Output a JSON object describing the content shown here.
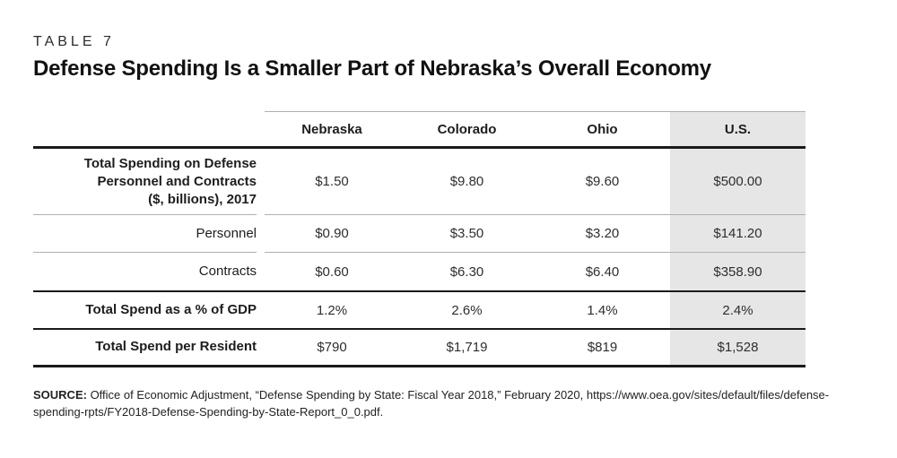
{
  "header": {
    "kicker": "TABLE 7",
    "title": "Defense Spending Is a Smaller Part of Nebraska’s Overall Economy"
  },
  "table": {
    "columns": [
      "Nebraska",
      "Colorado",
      "Ohio",
      "U.S."
    ],
    "rows": [
      {
        "label": "Total Spending on Defense Personnel and Contracts ($, billions), 2017",
        "label_lines": [
          "Total Spending on Defense",
          "Personnel and Contracts",
          "($, billions), 2017"
        ],
        "values": [
          "$1.50",
          "$9.80",
          "$9.60",
          "$500.00"
        ]
      },
      {
        "label": "Personnel",
        "values": [
          "$0.90",
          "$3.50",
          "$3.20",
          "$141.20"
        ]
      },
      {
        "label": "Contracts",
        "values": [
          "$0.60",
          "$6.30",
          "$6.40",
          "$358.90"
        ]
      },
      {
        "label": "Total Spend as a % of GDP",
        "values": [
          "1.2%",
          "2.6%",
          "1.4%",
          "2.4%"
        ]
      },
      {
        "label": "Total Spend per Resident",
        "values": [
          "$790",
          "$1,719",
          "$819",
          "$1,528"
        ]
      }
    ]
  },
  "source": {
    "label": "SOURCE:",
    "text": " Office of Economic Adjustment, “Defense Spending by State: Fiscal Year 2018,” February 2020, https://www.oea.gov/sites/default/files/defense-spending-rpts/FY2018-Defense-Spending-by-State-Report_0_0.pdf."
  },
  "colors": {
    "us_column_background": "#e6e6e6",
    "rule_dark": "#1a1a1a",
    "rule_light": "#b0b0b0",
    "text": "#1d1d1d"
  }
}
